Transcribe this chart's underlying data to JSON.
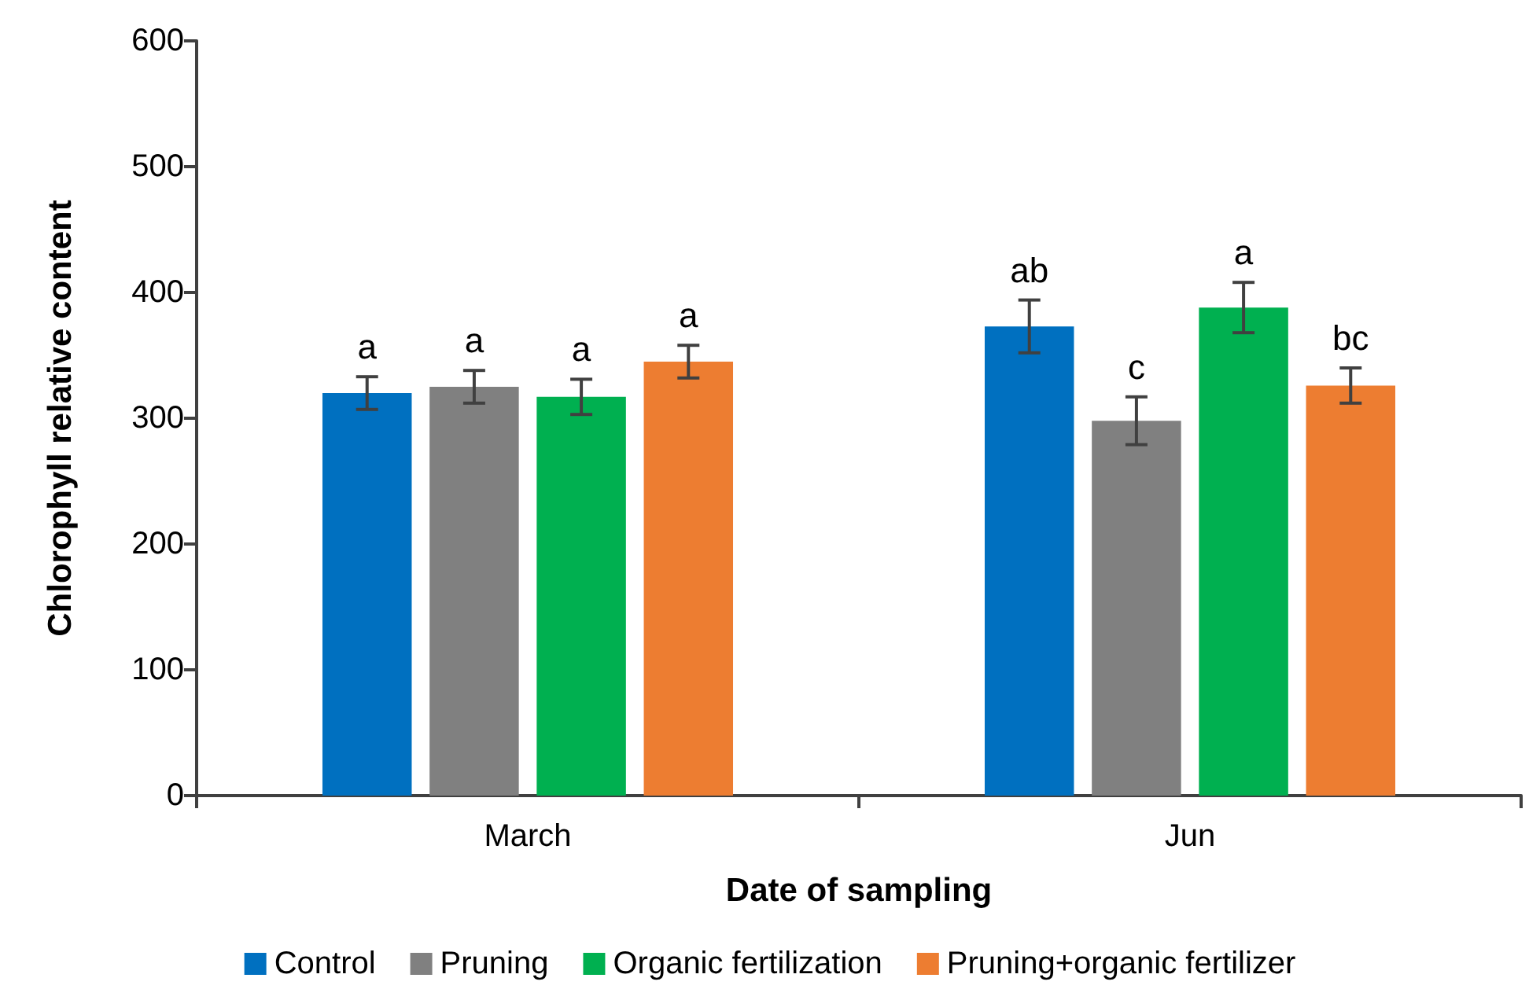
{
  "chart_data": {
    "type": "bar",
    "xlabel": "Date of sampling",
    "ylabel": "Chlorophyll relative content",
    "categories": [
      "March",
      "Jun"
    ],
    "series": [
      {
        "name": "Control",
        "color": "#0070c0",
        "values": [
          320,
          373
        ],
        "errors": [
          13,
          21
        ],
        "value_labels": [
          "a",
          "ab"
        ]
      },
      {
        "name": "Pruning",
        "color": "#808080",
        "values": [
          325,
          298
        ],
        "errors": [
          13,
          19
        ],
        "value_labels": [
          "a",
          "c"
        ]
      },
      {
        "name": "Organic fertilization",
        "color": "#00b050",
        "values": [
          317,
          388
        ],
        "errors": [
          14,
          20
        ],
        "value_labels": [
          "a",
          "a"
        ]
      },
      {
        "name": "Pruning+organic fertilizer",
        "color": "#ed7d31",
        "values": [
          345,
          326
        ],
        "errors": [
          13,
          14
        ],
        "value_labels": [
          "a",
          "bc"
        ]
      }
    ],
    "ylim": [
      0,
      600
    ],
    "yticks": [
      0,
      100,
      200,
      300,
      400,
      500,
      600
    ],
    "grid": false,
    "legend": "bottom"
  }
}
